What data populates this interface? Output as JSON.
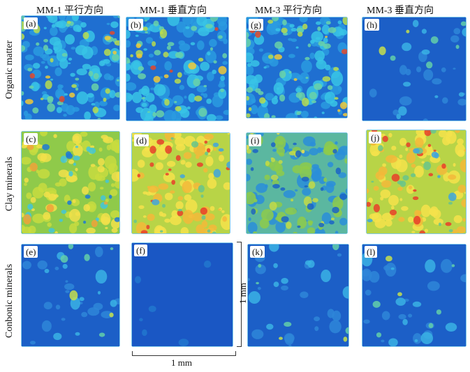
{
  "columns": [
    "MM-1  平行方向",
    "MM-1  垂直方向",
    "MM-3  平行方向",
    "MM-3  垂直方向"
  ],
  "rows": [
    "Organic matter",
    "Clay minerals",
    "Conbonic minerals"
  ],
  "panels": [
    {
      "label": "(a)",
      "palette": "organic-mid"
    },
    {
      "label": "(b)",
      "palette": "organic-mid"
    },
    {
      "label": "(g)",
      "palette": "organic-mid"
    },
    {
      "label": "(h)",
      "palette": "sparse"
    },
    {
      "label": "(c)",
      "palette": "clay-warm"
    },
    {
      "label": "(d)",
      "palette": "clay-hot"
    },
    {
      "label": "(i)",
      "palette": "clay-cool"
    },
    {
      "label": "(j)",
      "palette": "clay-hot"
    },
    {
      "label": "(e)",
      "palette": "sparse"
    },
    {
      "label": "(f)",
      "palette": "empty"
    },
    {
      "label": "(k)",
      "palette": "sparse"
    },
    {
      "label": "(l)",
      "palette": "sparse"
    }
  ],
  "scale": {
    "vertical": "1 mm",
    "horizontal": "1 mm"
  }
}
